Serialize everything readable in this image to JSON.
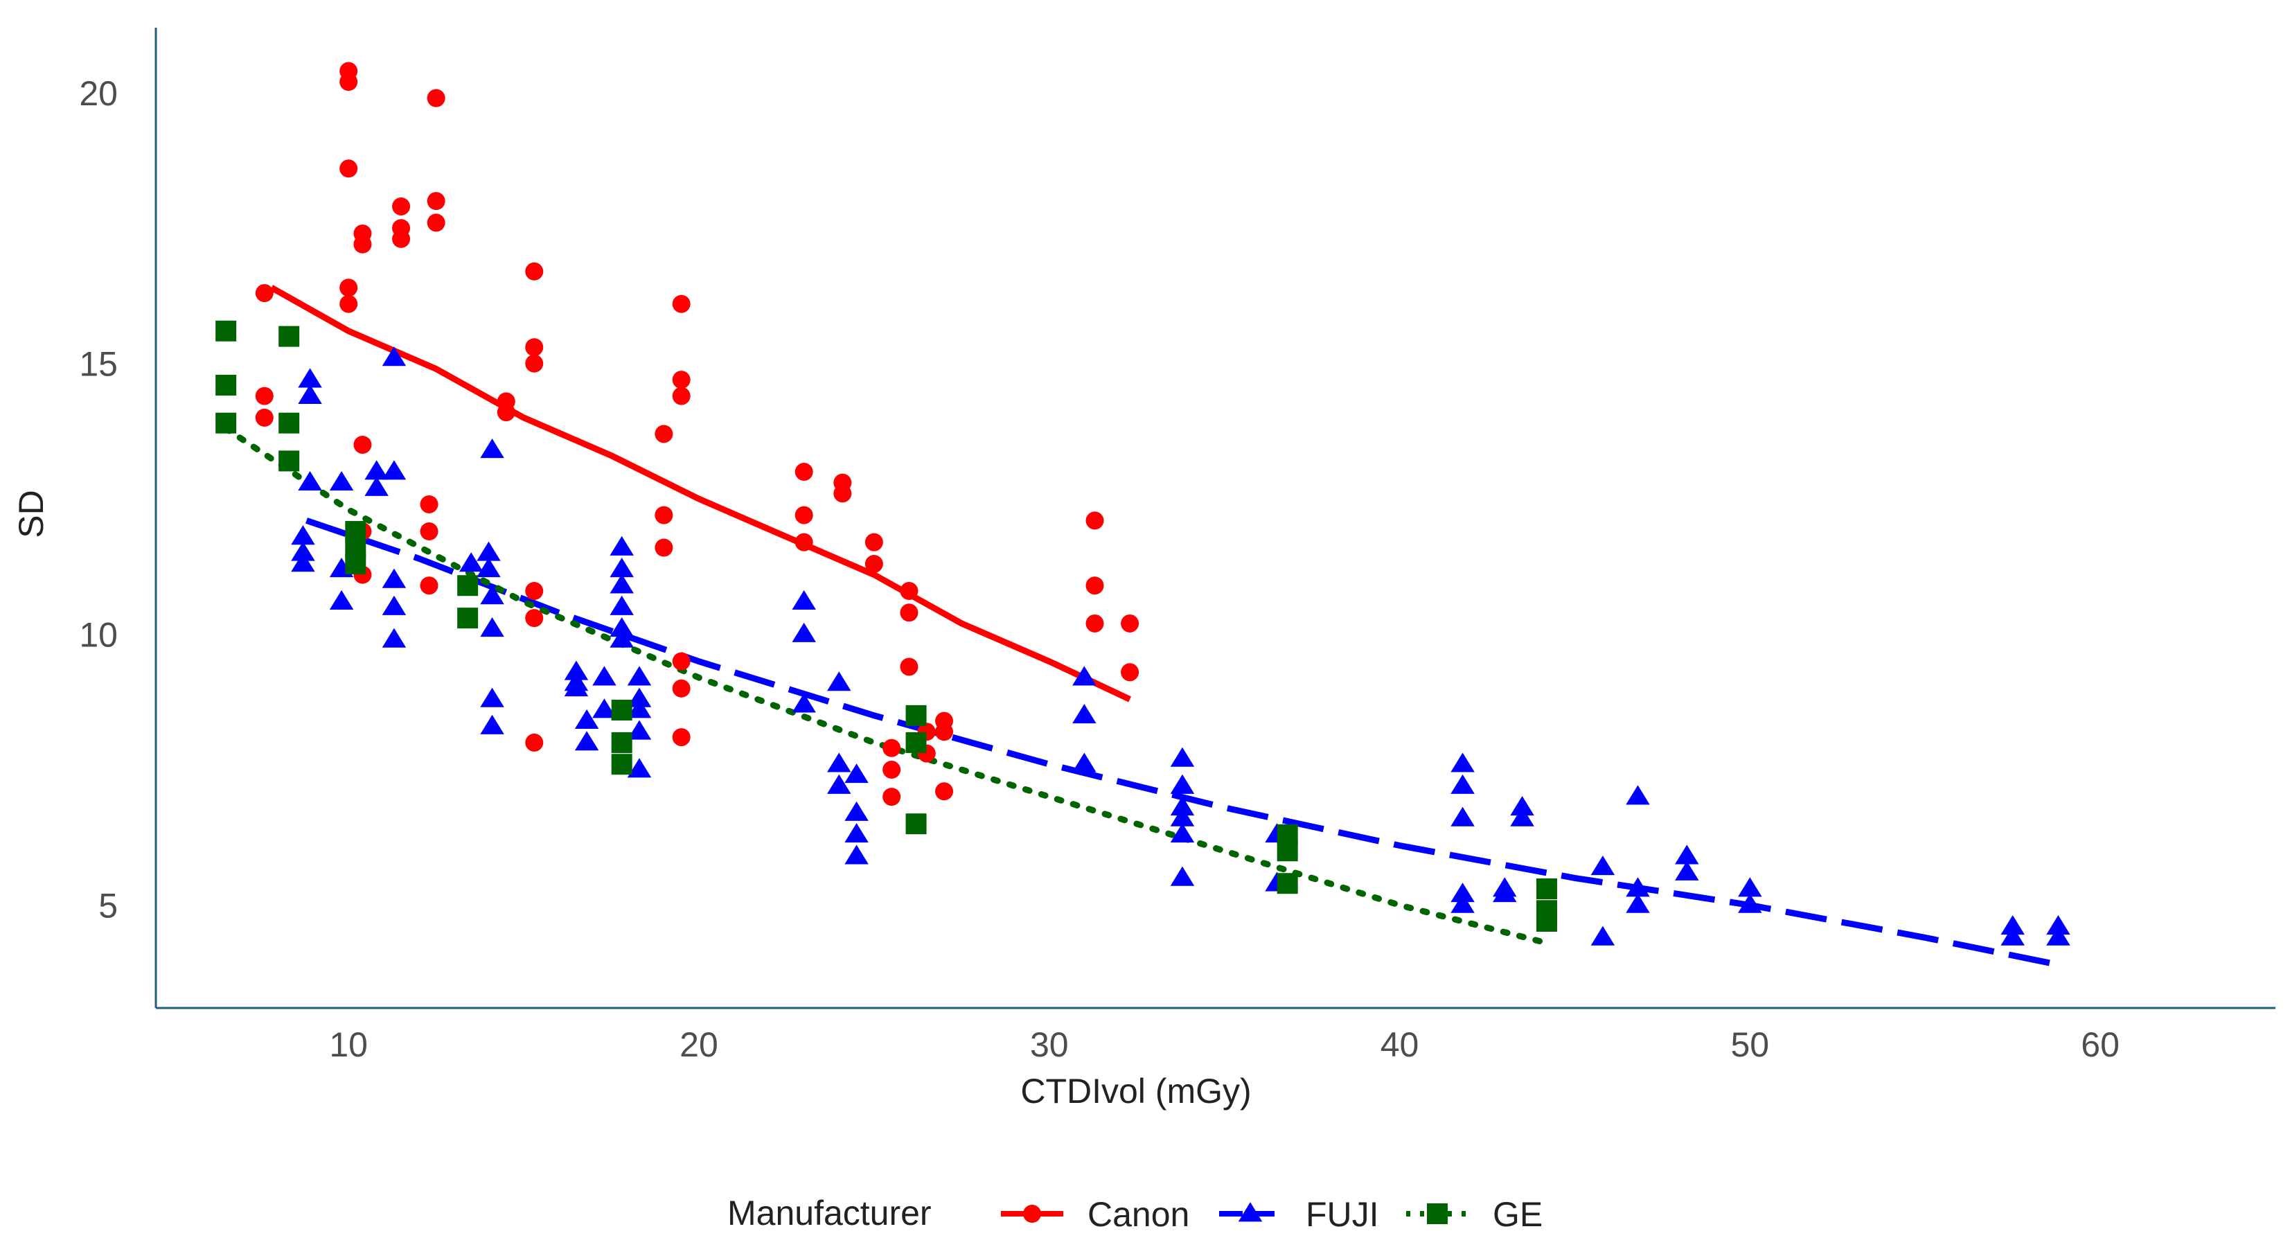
{
  "chart_data": {
    "type": "scatter",
    "title": "",
    "xlabel": "CTDIvol (mGy)",
    "ylabel": "SD",
    "xlim": [
      4.5,
      65
    ],
    "ylim": [
      3.1,
      21.2
    ],
    "xticks": [
      10,
      20,
      30,
      40,
      50,
      60
    ],
    "yticks": [
      5,
      10,
      15,
      20
    ],
    "xtick_labels": [
      "10",
      "20",
      "30",
      "40",
      "50",
      "60"
    ],
    "ytick_labels": [
      "5",
      "10",
      "15",
      "20"
    ],
    "grid": false,
    "legend": {
      "title": "Manufacturer",
      "placement": "bottom",
      "entries": [
        "Canon",
        "FUJI",
        "GE"
      ]
    },
    "series": [
      {
        "name": "Canon",
        "color": "#ff0000",
        "marker": "circle",
        "line_style": "solid",
        "trend": [
          [
            7.8,
            16.4
          ],
          [
            10,
            15.6
          ],
          [
            12.5,
            14.9
          ],
          [
            15,
            14.0
          ],
          [
            17.5,
            13.3
          ],
          [
            20,
            12.5
          ],
          [
            22.5,
            11.8
          ],
          [
            25,
            11.1
          ],
          [
            27.5,
            10.2
          ],
          [
            30,
            9.5
          ],
          [
            32.3,
            8.8
          ]
        ],
        "points": [
          [
            7.6,
            16.3
          ],
          [
            7.6,
            14.4
          ],
          [
            7.6,
            14.0
          ],
          [
            10.0,
            20.4
          ],
          [
            10.0,
            20.2
          ],
          [
            10.0,
            18.6
          ],
          [
            10.0,
            16.4
          ],
          [
            10.0,
            16.1
          ],
          [
            10.4,
            17.4
          ],
          [
            10.4,
            17.2
          ],
          [
            10.4,
            13.5
          ],
          [
            10.4,
            11.9
          ],
          [
            10.4,
            11.1
          ],
          [
            11.5,
            17.9
          ],
          [
            11.5,
            17.5
          ],
          [
            11.5,
            17.3
          ],
          [
            12.3,
            12.4
          ],
          [
            12.3,
            11.9
          ],
          [
            12.3,
            10.9
          ],
          [
            12.5,
            19.9
          ],
          [
            12.5,
            18.0
          ],
          [
            12.5,
            17.6
          ],
          [
            14.5,
            14.3
          ],
          [
            14.5,
            14.1
          ],
          [
            15.3,
            16.7
          ],
          [
            15.3,
            15.3
          ],
          [
            15.3,
            15.0
          ],
          [
            15.3,
            10.8
          ],
          [
            15.3,
            10.3
          ],
          [
            15.3,
            8.0
          ],
          [
            19.0,
            13.7
          ],
          [
            19.0,
            12.2
          ],
          [
            19.0,
            11.6
          ],
          [
            19.5,
            16.1
          ],
          [
            19.5,
            14.7
          ],
          [
            19.5,
            14.4
          ],
          [
            19.5,
            9.5
          ],
          [
            19.5,
            9.0
          ],
          [
            19.5,
            8.1
          ],
          [
            23.0,
            13.0
          ],
          [
            23.0,
            12.2
          ],
          [
            23.0,
            11.7
          ],
          [
            24.1,
            12.8
          ],
          [
            24.1,
            12.6
          ],
          [
            25.0,
            11.7
          ],
          [
            25.0,
            11.3
          ],
          [
            25.5,
            7.9
          ],
          [
            25.5,
            7.5
          ],
          [
            25.5,
            7.0
          ],
          [
            26.0,
            10.8
          ],
          [
            26.0,
            10.4
          ],
          [
            26.0,
            9.4
          ],
          [
            26.5,
            8.2
          ],
          [
            26.5,
            7.8
          ],
          [
            27.0,
            8.4
          ],
          [
            27.0,
            8.2
          ],
          [
            27.0,
            7.1
          ],
          [
            31.3,
            12.1
          ],
          [
            31.3,
            10.9
          ],
          [
            31.3,
            10.2
          ],
          [
            32.3,
            10.2
          ],
          [
            32.3,
            9.3
          ]
        ]
      },
      {
        "name": "FUJI",
        "color": "#0000ff",
        "marker": "triangle",
        "line_style": "dashed",
        "trend": [
          [
            8.8,
            12.1
          ],
          [
            12,
            11.4
          ],
          [
            16,
            10.4
          ],
          [
            20,
            9.5
          ],
          [
            25,
            8.5
          ],
          [
            30,
            7.6
          ],
          [
            35,
            6.8
          ],
          [
            40,
            6.1
          ],
          [
            45,
            5.5
          ],
          [
            50,
            5.0
          ],
          [
            55,
            4.4
          ],
          [
            58.8,
            3.9
          ]
        ],
        "points": [
          [
            8.7,
            11.8
          ],
          [
            8.7,
            11.5
          ],
          [
            8.7,
            11.3
          ],
          [
            8.9,
            14.7
          ],
          [
            8.9,
            14.4
          ],
          [
            8.9,
            12.8
          ],
          [
            9.8,
            12.8
          ],
          [
            9.8,
            11.2
          ],
          [
            9.8,
            10.6
          ],
          [
            10.8,
            12.7
          ],
          [
            10.8,
            13.0
          ],
          [
            11.3,
            15.1
          ],
          [
            11.3,
            13.0
          ],
          [
            11.3,
            11.0
          ],
          [
            11.3,
            10.5
          ],
          [
            11.3,
            9.9
          ],
          [
            13.5,
            11.3
          ],
          [
            14.0,
            11.5
          ],
          [
            14.0,
            11.2
          ],
          [
            14.1,
            13.4
          ],
          [
            14.1,
            10.7
          ],
          [
            14.1,
            10.1
          ],
          [
            14.1,
            8.8
          ],
          [
            14.1,
            8.3
          ],
          [
            16.5,
            9.3
          ],
          [
            16.5,
            9.1
          ],
          [
            16.5,
            9.0
          ],
          [
            16.8,
            8.4
          ],
          [
            16.8,
            8.0
          ],
          [
            17.3,
            9.2
          ],
          [
            17.3,
            8.6
          ],
          [
            17.8,
            11.6
          ],
          [
            17.8,
            11.2
          ],
          [
            17.8,
            10.9
          ],
          [
            17.8,
            10.5
          ],
          [
            17.8,
            10.1
          ],
          [
            17.8,
            9.9
          ],
          [
            18.3,
            9.2
          ],
          [
            18.3,
            8.8
          ],
          [
            18.3,
            8.6
          ],
          [
            18.3,
            8.2
          ],
          [
            18.3,
            7.5
          ],
          [
            23.0,
            10.6
          ],
          [
            23.0,
            10.0
          ],
          [
            23.0,
            8.7
          ],
          [
            24.0,
            9.1
          ],
          [
            24.0,
            7.6
          ],
          [
            24.0,
            7.2
          ],
          [
            24.5,
            7.4
          ],
          [
            24.5,
            6.7
          ],
          [
            24.5,
            6.3
          ],
          [
            24.5,
            5.9
          ],
          [
            31.0,
            9.2
          ],
          [
            31.0,
            8.5
          ],
          [
            31.0,
            7.6
          ],
          [
            33.8,
            7.7
          ],
          [
            33.8,
            7.2
          ],
          [
            33.8,
            6.8
          ],
          [
            33.8,
            6.6
          ],
          [
            33.8,
            6.3
          ],
          [
            33.8,
            5.5
          ],
          [
            36.5,
            6.3
          ],
          [
            36.5,
            5.4
          ],
          [
            41.8,
            7.6
          ],
          [
            41.8,
            7.2
          ],
          [
            41.8,
            6.6
          ],
          [
            41.8,
            5.2
          ],
          [
            41.8,
            5.0
          ],
          [
            43.0,
            5.3
          ],
          [
            43.0,
            5.2
          ],
          [
            43.5,
            6.8
          ],
          [
            43.5,
            6.6
          ],
          [
            45.8,
            5.7
          ],
          [
            45.8,
            4.4
          ],
          [
            46.8,
            7.0
          ],
          [
            46.8,
            5.3
          ],
          [
            46.8,
            5.0
          ],
          [
            48.2,
            5.9
          ],
          [
            48.2,
            5.6
          ],
          [
            50.0,
            5.3
          ],
          [
            50.0,
            5.0
          ],
          [
            57.5,
            4.6
          ],
          [
            57.5,
            4.4
          ],
          [
            58.8,
            4.6
          ],
          [
            58.8,
            4.4
          ]
        ]
      },
      {
        "name": "GE",
        "color": "#006400",
        "marker": "square",
        "line_style": "dotted",
        "trend": [
          [
            6.5,
            13.8
          ],
          [
            10,
            12.3
          ],
          [
            15,
            10.6
          ],
          [
            20,
            9.2
          ],
          [
            25,
            8.0
          ],
          [
            30,
            7.0
          ],
          [
            35,
            6.0
          ],
          [
            40,
            5.0
          ],
          [
            44.2,
            4.3
          ]
        ],
        "points": [
          [
            6.5,
            15.6
          ],
          [
            6.5,
            14.6
          ],
          [
            6.5,
            13.9
          ],
          [
            8.3,
            15.5
          ],
          [
            8.3,
            13.9
          ],
          [
            8.3,
            13.2
          ],
          [
            10.2,
            11.9
          ],
          [
            10.2,
            11.6
          ],
          [
            10.2,
            11.3
          ],
          [
            13.4,
            10.9
          ],
          [
            13.4,
            10.3
          ],
          [
            17.8,
            8.6
          ],
          [
            17.8,
            8.0
          ],
          [
            17.8,
            7.6
          ],
          [
            26.2,
            8.5
          ],
          [
            26.2,
            8.0
          ],
          [
            26.2,
            6.5
          ],
          [
            36.8,
            6.3
          ],
          [
            36.8,
            6.0
          ],
          [
            36.8,
            5.4
          ],
          [
            44.2,
            5.3
          ],
          [
            44.2,
            4.9
          ],
          [
            44.2,
            4.7
          ]
        ]
      }
    ]
  }
}
